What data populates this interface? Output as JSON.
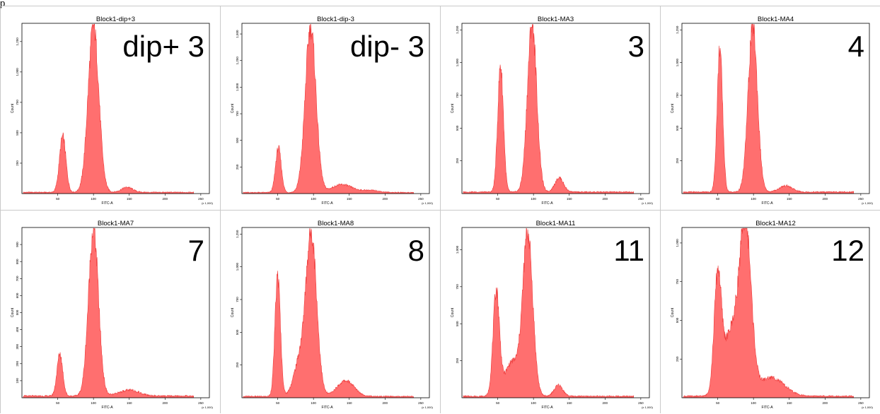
{
  "page": {
    "corner_text": "p"
  },
  "style": {
    "fill_color": "#ff6f6f",
    "stroke_color": "#ee3b3b",
    "frame_color": "#c9c9c9"
  },
  "chart_data": [
    {
      "type": "area",
      "title": "Block1-dip+3",
      "overlay_label": "dip+ 3",
      "xlabel": "FITC-A",
      "ylabel": "Count",
      "x_unit_label": "(x 1,000)",
      "xlim": [
        0,
        262
      ],
      "ylim": [
        0,
        1400
      ],
      "x_ticks": [
        50,
        100,
        150,
        200,
        250
      ],
      "y_ticks": [
        250,
        500,
        750,
        1000,
        1250
      ],
      "peaks": [
        {
          "center": 57,
          "height": 460,
          "width": 4.5
        },
        {
          "center": 100,
          "height": 1370,
          "width": 7.5
        },
        {
          "center": 147,
          "height": 42,
          "width": 8
        }
      ],
      "baseline": 10
    },
    {
      "type": "area",
      "title": "Block1-dip-3",
      "overlay_label": "dip- 3",
      "xlabel": "FITC-A",
      "ylabel": "Count",
      "x_unit_label": "(x 1,000)",
      "xlim": [
        0,
        262
      ],
      "ylim": [
        0,
        1600
      ],
      "x_ticks": [
        50,
        100,
        150,
        200,
        250
      ],
      "y_ticks": [
        250,
        500,
        750,
        1000,
        1250,
        1500
      ],
      "peaks": [
        {
          "center": 51,
          "height": 420,
          "width": 4
        },
        {
          "center": 96,
          "height": 1560,
          "width": 7.5
        },
        {
          "center": 140,
          "height": 75,
          "width": 14
        },
        {
          "center": 180,
          "height": 20,
          "width": 12
        }
      ],
      "baseline": 10
    },
    {
      "type": "area",
      "title": "Block1-MA3",
      "overlay_label": "3",
      "xlabel": "FITC-A",
      "ylabel": "Count",
      "x_unit_label": "(x 1,000)",
      "xlim": [
        0,
        262
      ],
      "ylim": [
        0,
        1300
      ],
      "x_ticks": [
        50,
        100,
        150,
        200,
        250
      ],
      "y_ticks": [
        250,
        500,
        750,
        1000,
        1250
      ],
      "peaks": [
        {
          "center": 54,
          "height": 970,
          "width": 4
        },
        {
          "center": 98,
          "height": 1290,
          "width": 6.5
        },
        {
          "center": 136,
          "height": 110,
          "width": 6
        }
      ],
      "baseline": 12
    },
    {
      "type": "area",
      "title": "Block1-MA4",
      "overlay_label": "4",
      "xlabel": "FITC-A",
      "ylabel": "Count",
      "x_unit_label": "(x 1,000)",
      "xlim": [
        0,
        262
      ],
      "ylim": [
        0,
        1300
      ],
      "x_ticks": [
        50,
        100,
        150,
        200,
        250
      ],
      "y_ticks": [
        250,
        500,
        750,
        1000,
        1250
      ],
      "peaks": [
        {
          "center": 53,
          "height": 1100,
          "width": 3.8
        },
        {
          "center": 99,
          "height": 1270,
          "width": 6.5
        },
        {
          "center": 145,
          "height": 48,
          "width": 9
        }
      ],
      "baseline": 12
    },
    {
      "type": "area",
      "title": "Block1-MA7",
      "overlay_label": "7",
      "xlabel": "FITC-A",
      "ylabel": "Count",
      "x_unit_label": "(x 1,000)",
      "xlim": [
        0,
        262
      ],
      "ylim": [
        0,
        1000
      ],
      "x_ticks": [
        50,
        100,
        150,
        200,
        250
      ],
      "y_ticks": [
        100,
        200,
        300,
        400,
        500,
        600,
        700,
        800,
        900
      ],
      "peaks": [
        {
          "center": 53,
          "height": 250,
          "width": 4
        },
        {
          "center": 100,
          "height": 980,
          "width": 7
        },
        {
          "center": 150,
          "height": 35,
          "width": 14
        }
      ],
      "baseline": 10
    },
    {
      "type": "area",
      "title": "Block1-MA8",
      "overlay_label": "8",
      "xlabel": "FITC-A",
      "ylabel": "Count",
      "x_unit_label": "(x 1,000)",
      "xlim": [
        0,
        262
      ],
      "ylim": [
        0,
        1300
      ],
      "x_ticks": [
        50,
        100,
        150,
        200,
        250
      ],
      "y_ticks": [
        250,
        500,
        750,
        1000,
        1250
      ],
      "peaks": [
        {
          "center": 50,
          "height": 920,
          "width": 3.8
        },
        {
          "center": 97,
          "height": 1240,
          "width": 7.5
        },
        {
          "center": 80,
          "height": 250,
          "width": 8
        },
        {
          "center": 145,
          "height": 120,
          "width": 12
        }
      ],
      "baseline": 10
    },
    {
      "type": "area",
      "title": "Block1-MA11",
      "overlay_label": "11",
      "xlabel": "FITC-A",
      "ylabel": "Count",
      "x_unit_label": "(x 1,000)",
      "xlim": [
        0,
        262
      ],
      "ylim": [
        0,
        1150
      ],
      "x_ticks": [
        50,
        100,
        150,
        200,
        250
      ],
      "y_ticks": [
        250,
        500,
        750,
        1000
      ],
      "peaks": [
        {
          "center": 48,
          "height": 700,
          "width": 4.5
        },
        {
          "center": 92,
          "height": 1090,
          "width": 7
        },
        {
          "center": 70,
          "height": 230,
          "width": 10
        },
        {
          "center": 135,
          "height": 75,
          "width": 6
        }
      ],
      "baseline": 10
    },
    {
      "type": "area",
      "title": "Block1-MA12",
      "overlay_label": "12",
      "xlabel": "FITC-A",
      "ylabel": "Count",
      "x_unit_label": "(x 1,000)",
      "xlim": [
        0,
        262
      ],
      "ylim": [
        0,
        1100
      ],
      "x_ticks": [
        50,
        100,
        150,
        200,
        250
      ],
      "y_ticks": [
        250,
        500,
        750,
        1000
      ],
      "peaks": [
        {
          "center": 50,
          "height": 720,
          "width": 5
        },
        {
          "center": 89,
          "height": 1020,
          "width": 8
        },
        {
          "center": 70,
          "height": 420,
          "width": 12
        },
        {
          "center": 125,
          "height": 120,
          "width": 18
        }
      ],
      "baseline": 10
    }
  ]
}
